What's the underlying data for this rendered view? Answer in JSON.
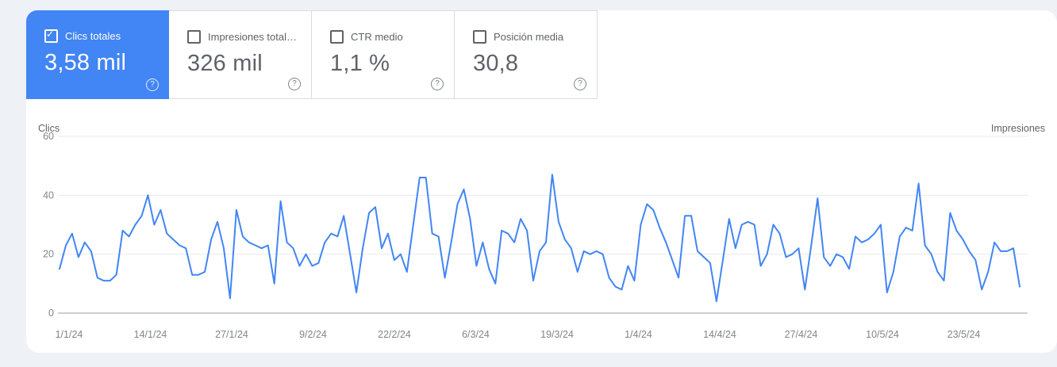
{
  "page": {
    "background": "#eef1f6",
    "card_background": "#ffffff",
    "border_color": "#dadce0",
    "accent_blue": "#4285f4"
  },
  "metric_cards": [
    {
      "id": "clicks",
      "label": "Clics totales",
      "value": "3,58 mil",
      "checked": true,
      "selected": true,
      "help_icon": "?"
    },
    {
      "id": "impressions",
      "label": "Impresiones total…",
      "value": "326 mil",
      "checked": false,
      "selected": false,
      "help_icon": "?"
    },
    {
      "id": "ctr",
      "label": "CTR medio",
      "value": "1,1 %",
      "checked": false,
      "selected": false,
      "help_icon": "?"
    },
    {
      "id": "position",
      "label": "Posición media",
      "value": "30,8",
      "checked": false,
      "selected": false,
      "help_icon": "?"
    }
  ],
  "checkmark_glyph": "✓",
  "chart_data": {
    "type": "line",
    "title": "",
    "left_axis_label": "Clics",
    "right_axis_label": "Impresiones",
    "ylim": [
      0,
      60
    ],
    "y_ticks": [
      60,
      40,
      20,
      0
    ],
    "grid": true,
    "x_tick_labels": [
      "1/1/24",
      "14/1/24",
      "27/1/24",
      "9/2/24",
      "22/2/24",
      "6/3/24",
      "19/3/24",
      "1/4/24",
      "14/4/24",
      "27/4/24",
      "10/5/24",
      "23/5/24"
    ],
    "series": [
      {
        "name": "Clics",
        "color": "#4285f4",
        "start_date": "1/1/24",
        "interval": "daily",
        "values": [
          15,
          23,
          27,
          19,
          24,
          21,
          12,
          11,
          11,
          13,
          28,
          26,
          30,
          33,
          40,
          30,
          35,
          27,
          25,
          23,
          22,
          13,
          13,
          14,
          25,
          31,
          22,
          5,
          35,
          26,
          24,
          23,
          22,
          23,
          10,
          38,
          24,
          22,
          16,
          20,
          16,
          17,
          24,
          27,
          26,
          33,
          20,
          7,
          22,
          34,
          36,
          22,
          27,
          18,
          20,
          14,
          30,
          46,
          46,
          27,
          26,
          12,
          24,
          37,
          42,
          32,
          16,
          24,
          15,
          10,
          28,
          27,
          24,
          32,
          28,
          11,
          21,
          24,
          47,
          31,
          25,
          22,
          14,
          21,
          20,
          21,
          20,
          12,
          9,
          8,
          16,
          11,
          30,
          37,
          35,
          29,
          24,
          18,
          12,
          33,
          33,
          21,
          19,
          17,
          4,
          18,
          32,
          22,
          30,
          31,
          30,
          16,
          20,
          30,
          27,
          19,
          20,
          22,
          8,
          23,
          39,
          19,
          16,
          20,
          19,
          15,
          26,
          24,
          25,
          27,
          30,
          7,
          14,
          26,
          29,
          28,
          44,
          23,
          20,
          14,
          11,
          34,
          28,
          25,
          21,
          18,
          8,
          14,
          24,
          21,
          21,
          22,
          9
        ]
      }
    ],
    "gridline_color": "#e8eaed",
    "zero_line_color": "#9aa0a6",
    "tick_label_color": "#80868b",
    "axis_title_color": "#5f6368"
  }
}
